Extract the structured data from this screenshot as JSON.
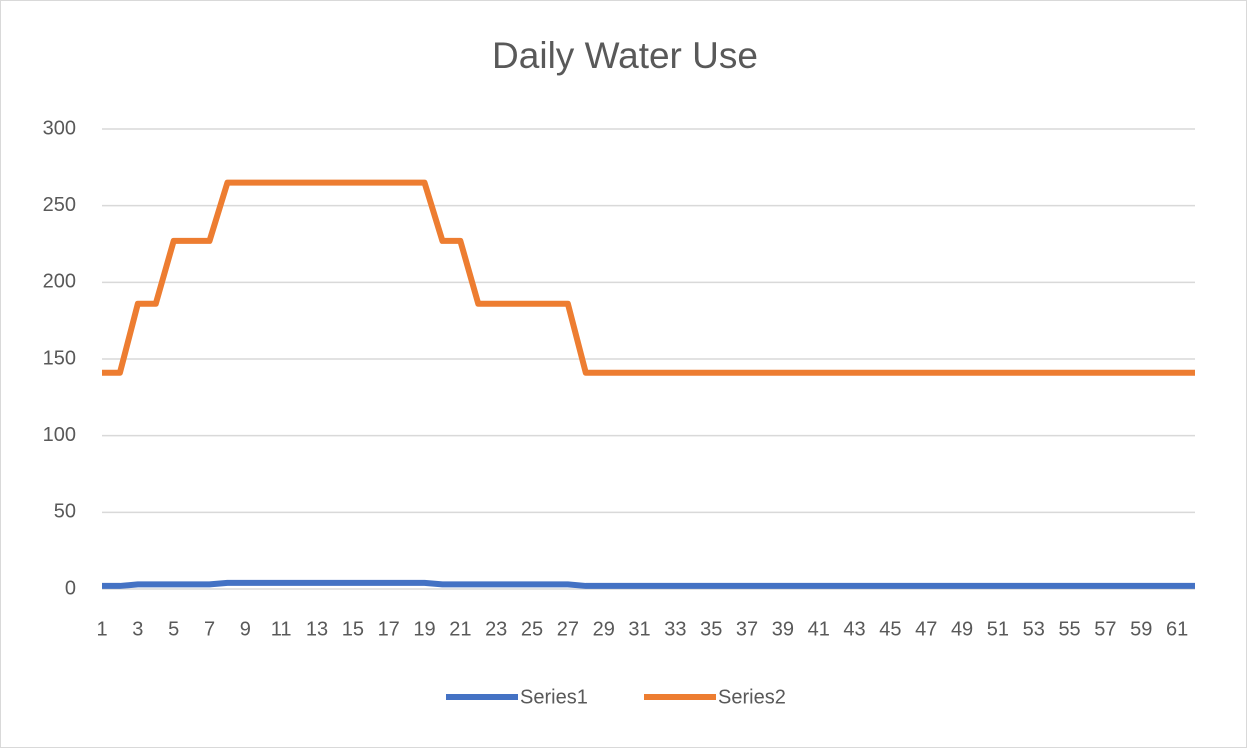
{
  "chart_data": {
    "type": "line",
    "title": "Daily Water Use",
    "categories": [
      "1",
      null,
      "3",
      null,
      "5",
      null,
      "7",
      null,
      "9",
      null,
      "11",
      null,
      "13",
      null,
      "15",
      null,
      "17",
      null,
      "19",
      null,
      "21",
      null,
      "23",
      null,
      "25",
      null,
      "27",
      null,
      "29",
      null,
      "31",
      null,
      "33",
      null,
      "35",
      null,
      "37",
      null,
      "39",
      null,
      "41",
      null,
      "43",
      null,
      "45",
      null,
      "47",
      null,
      "49",
      null,
      "51",
      null,
      "53",
      null,
      "55",
      null,
      "57",
      null,
      "59",
      null,
      "61",
      null
    ],
    "series": [
      {
        "name": "Series1",
        "color": "#4472c4",
        "values": [
          2,
          2,
          3,
          3,
          3,
          3,
          3,
          4,
          4,
          4,
          4,
          4,
          4,
          4,
          4,
          4,
          4,
          4,
          4,
          3,
          3,
          3,
          3,
          3,
          3,
          3,
          3,
          2,
          2,
          2,
          2,
          2,
          2,
          2,
          2,
          2,
          2,
          2,
          2,
          2,
          2,
          2,
          2,
          2,
          2,
          2,
          2,
          2,
          2,
          2,
          2,
          2,
          2,
          2,
          2,
          2,
          2,
          2,
          2,
          2,
          2,
          2
        ]
      },
      {
        "name": "Series2",
        "color": "#ed7d31",
        "values": [
          141,
          141,
          186,
          186,
          227,
          227,
          227,
          265,
          265,
          265,
          265,
          265,
          265,
          265,
          265,
          265,
          265,
          265,
          265,
          227,
          227,
          186,
          186,
          186,
          186,
          186,
          186,
          141,
          141,
          141,
          141,
          141,
          141,
          141,
          141,
          141,
          141,
          141,
          141,
          141,
          141,
          141,
          141,
          141,
          141,
          141,
          141,
          141,
          141,
          141,
          141,
          141,
          141,
          141,
          141,
          141,
          141,
          141,
          141,
          141,
          141,
          141
        ]
      }
    ],
    "ylim": [
      0,
      300
    ],
    "yticks": [
      0,
      50,
      100,
      150,
      200,
      250,
      300
    ],
    "grid": true,
    "legend": "bottom"
  }
}
